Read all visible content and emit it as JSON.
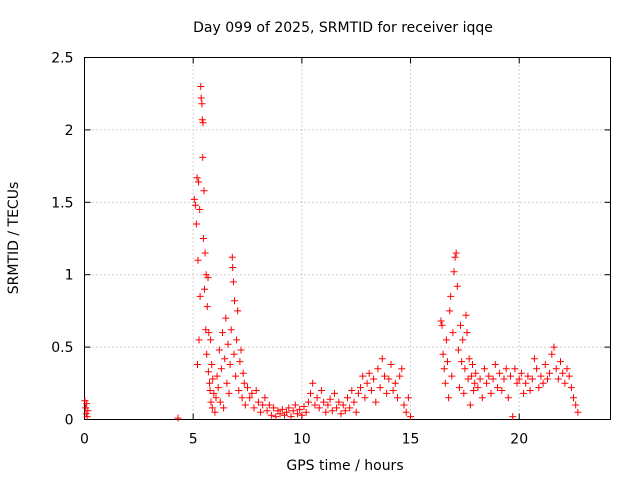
{
  "chart_data": {
    "type": "scatter",
    "title": "Day 099 of 2025, SRMTID for receiver iqqe",
    "xlabel": "GPS time / hours",
    "ylabel": "SRMTID / TECUs",
    "xlim": [
      0,
      24.2
    ],
    "ylim": [
      0,
      2.5
    ],
    "x_ticks": [
      0,
      5,
      10,
      15,
      20
    ],
    "x_tick_labels": [
      "0",
      "5",
      "10",
      "15",
      "20"
    ],
    "y_ticks": [
      0,
      0.5,
      1,
      1.5,
      2,
      2.5
    ],
    "y_tick_labels": [
      "0",
      "0.5",
      "1",
      "1.5",
      "2",
      "2.5"
    ],
    "grid": true,
    "marker": "plus",
    "color": "#ff0000",
    "series": [
      {
        "name": "SRMTID",
        "points": [
          [
            0.02,
            0.13
          ],
          [
            0.05,
            0.08
          ],
          [
            0.08,
            0.04
          ],
          [
            0.1,
            0.11
          ],
          [
            0.12,
            0.02
          ],
          [
            0.15,
            0.06
          ],
          [
            4.3,
            0.01
          ],
          [
            5.05,
            1.52
          ],
          [
            5.1,
            1.48
          ],
          [
            5.15,
            1.35
          ],
          [
            5.18,
            1.67
          ],
          [
            5.2,
            0.38
          ],
          [
            5.22,
            1.1
          ],
          [
            5.25,
            1.64
          ],
          [
            5.27,
            0.55
          ],
          [
            5.3,
            1.45
          ],
          [
            5.32,
            0.85
          ],
          [
            5.35,
            2.3
          ],
          [
            5.37,
            2.22
          ],
          [
            5.4,
            2.18
          ],
          [
            5.42,
            2.07
          ],
          [
            5.44,
            1.81
          ],
          [
            5.45,
            2.05
          ],
          [
            5.47,
            1.25
          ],
          [
            5.5,
            1.58
          ],
          [
            5.52,
            0.9
          ],
          [
            5.55,
            1.15
          ],
          [
            5.58,
            0.62
          ],
          [
            5.6,
            1.0
          ],
          [
            5.62,
            0.45
          ],
          [
            5.65,
            0.78
          ],
          [
            5.68,
            0.98
          ],
          [
            5.7,
            0.33
          ],
          [
            5.72,
            0.6
          ],
          [
            5.75,
            0.25
          ],
          [
            5.78,
            0.2
          ],
          [
            5.8,
            0.55
          ],
          [
            5.82,
            0.12
          ],
          [
            5.85,
            0.38
          ],
          [
            5.88,
            0.08
          ],
          [
            5.9,
            0.28
          ],
          [
            5.95,
            0.18
          ],
          [
            6.0,
            0.05
          ],
          [
            6.05,
            0.15
          ],
          [
            6.1,
            0.3
          ],
          [
            6.15,
            0.22
          ],
          [
            6.2,
            0.48
          ],
          [
            6.25,
            0.12
          ],
          [
            6.3,
            0.35
          ],
          [
            6.35,
            0.6
          ],
          [
            6.4,
            0.08
          ],
          [
            6.45,
            0.42
          ],
          [
            6.5,
            0.7
          ],
          [
            6.55,
            0.25
          ],
          [
            6.6,
            0.52
          ],
          [
            6.65,
            0.18
          ],
          [
            6.7,
            0.38
          ],
          [
            6.75,
            0.62
          ],
          [
            6.8,
            1.12
          ],
          [
            6.82,
            1.05
          ],
          [
            6.85,
            0.95
          ],
          [
            6.88,
            0.45
          ],
          [
            6.9,
            0.82
          ],
          [
            6.95,
            0.3
          ],
          [
            7.0,
            0.55
          ],
          [
            7.05,
            0.75
          ],
          [
            7.1,
            0.2
          ],
          [
            7.15,
            0.4
          ],
          [
            7.2,
            0.48
          ],
          [
            7.25,
            0.15
          ],
          [
            7.3,
            0.32
          ],
          [
            7.35,
            0.25
          ],
          [
            7.4,
            0.1
          ],
          [
            7.5,
            0.22
          ],
          [
            7.6,
            0.15
          ],
          [
            7.7,
            0.18
          ],
          [
            7.8,
            0.08
          ],
          [
            7.9,
            0.2
          ],
          [
            8.0,
            0.12
          ],
          [
            8.1,
            0.05
          ],
          [
            8.2,
            0.1
          ],
          [
            8.3,
            0.15
          ],
          [
            8.4,
            0.06
          ],
          [
            8.5,
            0.1
          ],
          [
            8.6,
            0.03
          ],
          [
            8.7,
            0.08
          ],
          [
            8.8,
            0.02
          ],
          [
            8.9,
            0.06
          ],
          [
            9.0,
            0.04
          ],
          [
            9.1,
            0.07
          ],
          [
            9.2,
            0.03
          ],
          [
            9.3,
            0.05
          ],
          [
            9.4,
            0.08
          ],
          [
            9.5,
            0.02
          ],
          [
            9.6,
            0.06
          ],
          [
            9.7,
            0.1
          ],
          [
            9.8,
            0.04
          ],
          [
            9.9,
            0.07
          ],
          [
            10.0,
            0.03
          ],
          [
            10.1,
            0.09
          ],
          [
            10.2,
            0.05
          ],
          [
            10.3,
            0.12
          ],
          [
            10.4,
            0.18
          ],
          [
            10.5,
            0.25
          ],
          [
            10.6,
            0.1
          ],
          [
            10.7,
            0.15
          ],
          [
            10.8,
            0.08
          ],
          [
            10.9,
            0.2
          ],
          [
            11.0,
            0.12
          ],
          [
            11.1,
            0.05
          ],
          [
            11.2,
            0.1
          ],
          [
            11.3,
            0.14
          ],
          [
            11.4,
            0.06
          ],
          [
            11.5,
            0.18
          ],
          [
            11.6,
            0.08
          ],
          [
            11.7,
            0.12
          ],
          [
            11.8,
            0.04
          ],
          [
            11.9,
            0.1
          ],
          [
            12.0,
            0.06
          ],
          [
            12.1,
            0.15
          ],
          [
            12.2,
            0.08
          ],
          [
            12.3,
            0.2
          ],
          [
            12.4,
            0.12
          ],
          [
            12.5,
            0.05
          ],
          [
            12.6,
            0.18
          ],
          [
            12.7,
            0.22
          ],
          [
            12.8,
            0.3
          ],
          [
            12.9,
            0.15
          ],
          [
            13.0,
            0.25
          ],
          [
            13.1,
            0.32
          ],
          [
            13.2,
            0.2
          ],
          [
            13.3,
            0.28
          ],
          [
            13.4,
            0.12
          ],
          [
            13.5,
            0.35
          ],
          [
            13.6,
            0.22
          ],
          [
            13.7,
            0.42
          ],
          [
            13.8,
            0.3
          ],
          [
            13.9,
            0.18
          ],
          [
            14.0,
            0.28
          ],
          [
            14.1,
            0.38
          ],
          [
            14.2,
            0.2
          ],
          [
            14.3,
            0.25
          ],
          [
            14.4,
            0.15
          ],
          [
            14.5,
            0.3
          ],
          [
            14.6,
            0.35
          ],
          [
            14.7,
            0.1
          ],
          [
            14.8,
            0.05
          ],
          [
            14.9,
            0.15
          ],
          [
            15.0,
            0.02
          ],
          [
            16.4,
            0.68
          ],
          [
            16.45,
            0.65
          ],
          [
            16.5,
            0.45
          ],
          [
            16.55,
            0.35
          ],
          [
            16.6,
            0.25
          ],
          [
            16.65,
            0.55
          ],
          [
            16.7,
            0.4
          ],
          [
            16.75,
            0.15
          ],
          [
            16.8,
            0.75
          ],
          [
            16.85,
            0.85
          ],
          [
            16.9,
            0.3
          ],
          [
            16.95,
            0.6
          ],
          [
            17.0,
            1.02
          ],
          [
            17.05,
            1.12
          ],
          [
            17.1,
            1.15
          ],
          [
            17.15,
            0.92
          ],
          [
            17.2,
            0.48
          ],
          [
            17.25,
            0.22
          ],
          [
            17.3,
            0.65
          ],
          [
            17.35,
            0.4
          ],
          [
            17.4,
            0.55
          ],
          [
            17.45,
            0.18
          ],
          [
            17.5,
            0.35
          ],
          [
            17.55,
            0.72
          ],
          [
            17.6,
            0.6
          ],
          [
            17.65,
            0.28
          ],
          [
            17.7,
            0.42
          ],
          [
            17.75,
            0.1
          ],
          [
            17.8,
            0.3
          ],
          [
            17.85,
            0.38
          ],
          [
            17.9,
            0.2
          ],
          [
            17.95,
            0.25
          ],
          [
            18.0,
            0.32
          ],
          [
            18.1,
            0.22
          ],
          [
            18.2,
            0.28
          ],
          [
            18.3,
            0.15
          ],
          [
            18.4,
            0.35
          ],
          [
            18.5,
            0.25
          ],
          [
            18.6,
            0.3
          ],
          [
            18.7,
            0.18
          ],
          [
            18.8,
            0.28
          ],
          [
            18.9,
            0.38
          ],
          [
            19.0,
            0.22
          ],
          [
            19.1,
            0.32
          ],
          [
            19.2,
            0.2
          ],
          [
            19.3,
            0.28
          ],
          [
            19.4,
            0.35
          ],
          [
            19.5,
            0.15
          ],
          [
            19.6,
            0.3
          ],
          [
            19.7,
            0.02
          ],
          [
            19.8,
            0.35
          ],
          [
            19.9,
            0.25
          ],
          [
            20.0,
            0.28
          ],
          [
            20.1,
            0.32
          ],
          [
            20.2,
            0.18
          ],
          [
            20.3,
            0.25
          ],
          [
            20.4,
            0.3
          ],
          [
            20.5,
            0.2
          ],
          [
            20.6,
            0.28
          ],
          [
            20.7,
            0.42
          ],
          [
            20.8,
            0.35
          ],
          [
            20.9,
            0.22
          ],
          [
            21.0,
            0.3
          ],
          [
            21.1,
            0.25
          ],
          [
            21.2,
            0.38
          ],
          [
            21.3,
            0.28
          ],
          [
            21.4,
            0.32
          ],
          [
            21.5,
            0.45
          ],
          [
            21.6,
            0.5
          ],
          [
            21.7,
            0.35
          ],
          [
            21.8,
            0.28
          ],
          [
            21.9,
            0.4
          ],
          [
            22.0,
            0.32
          ],
          [
            22.1,
            0.25
          ],
          [
            22.2,
            0.35
          ],
          [
            22.3,
            0.3
          ],
          [
            22.4,
            0.22
          ],
          [
            22.5,
            0.15
          ],
          [
            22.6,
            0.1
          ],
          [
            22.7,
            0.05
          ]
        ]
      }
    ]
  }
}
